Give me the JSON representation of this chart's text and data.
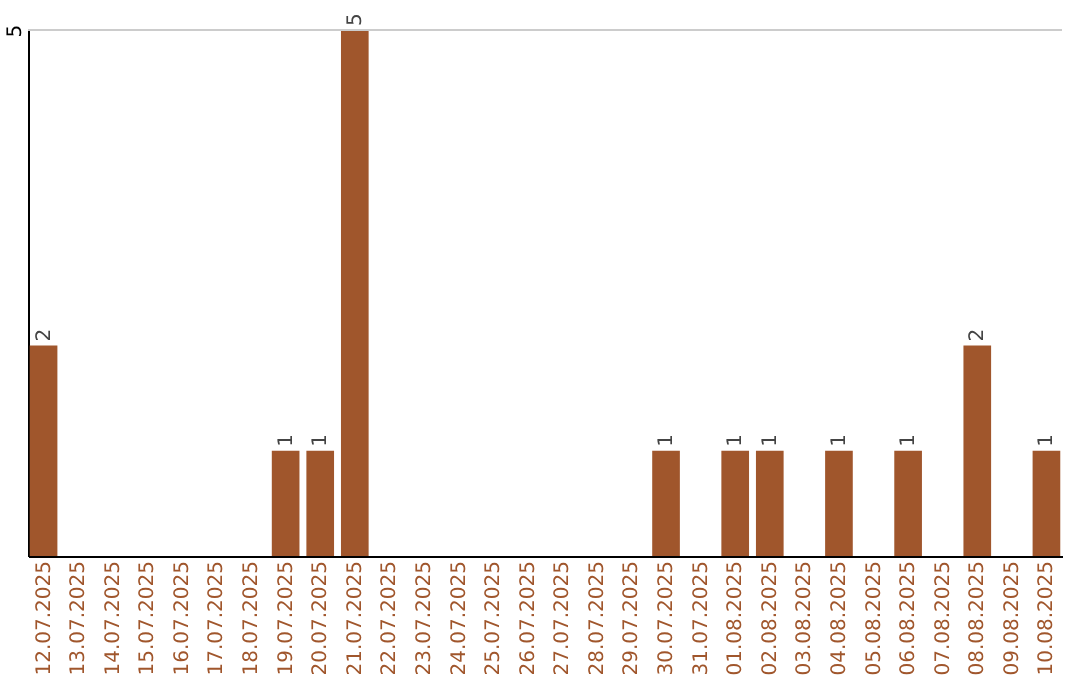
{
  "chart_data": {
    "type": "bar",
    "categories": [
      "12.07.2025",
      "13.07.2025",
      "14.07.2025",
      "15.07.2025",
      "16.07.2025",
      "17.07.2025",
      "18.07.2025",
      "19.07.2025",
      "20.07.2025",
      "21.07.2025",
      "22.07.2025",
      "23.07.2025",
      "24.07.2025",
      "25.07.2025",
      "26.07.2025",
      "27.07.2025",
      "28.07.2025",
      "29.07.2025",
      "30.07.2025",
      "31.07.2025",
      "01.08.2025",
      "02.08.2025",
      "03.08.2025",
      "04.08.2025",
      "05.08.2025",
      "06.08.2025",
      "07.08.2025",
      "08.08.2025",
      "09.08.2025",
      "10.08.2025"
    ],
    "values": [
      2,
      0,
      0,
      0,
      0,
      0,
      0,
      1,
      1,
      5,
      0,
      0,
      0,
      0,
      0,
      0,
      0,
      0,
      1,
      0,
      1,
      1,
      0,
      1,
      0,
      1,
      0,
      2,
      0,
      1
    ],
    "value_labels": [
      "2",
      null,
      null,
      null,
      null,
      null,
      null,
      "1",
      "1",
      "5",
      null,
      null,
      null,
      null,
      null,
      null,
      null,
      null,
      "1",
      null,
      "1",
      "1",
      null,
      "1",
      null,
      "1",
      null,
      "2",
      null,
      "1"
    ],
    "color": "#a0562c",
    "ylim": [
      0,
      5
    ],
    "yticks": [
      5
    ],
    "ref_lines": [
      {
        "axis": "y",
        "value": 5,
        "color": "#cccccc"
      }
    ]
  }
}
